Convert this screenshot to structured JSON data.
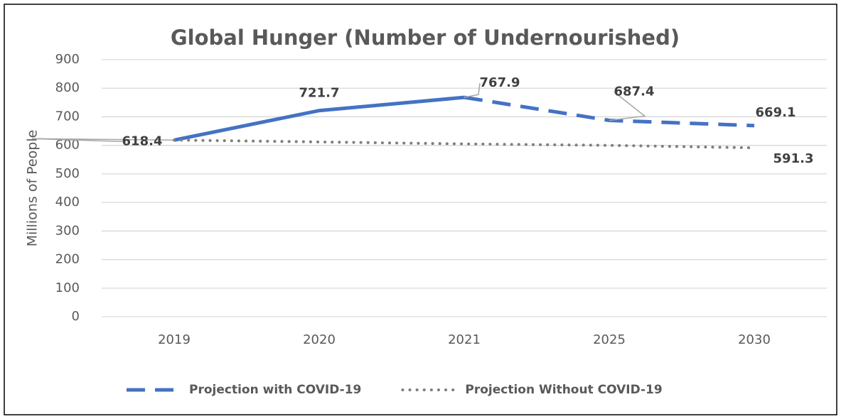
{
  "chart_data": {
    "type": "line",
    "title": "Global Hunger (Number of Undernourished)",
    "y_label": "Millions of People",
    "categories": [
      "2019",
      "2020",
      "2021",
      "2025",
      "2030"
    ],
    "series": [
      {
        "name": "Projection with COVID-19",
        "color": "#4472c4",
        "style": "dashed",
        "segment_styles": [
          "solid",
          "solid",
          "dashed",
          "dashed"
        ],
        "values": [
          618.4,
          721.7,
          767.9,
          687.4,
          669.1
        ],
        "value_labels": [
          "618.4",
          "721.7",
          "767.9",
          "687.4",
          "669.1"
        ]
      },
      {
        "name": "Projection Without COVID-19",
        "color": "#7f7f7f",
        "style": "dotted",
        "segment_styles": [
          "dotted",
          "dotted",
          "dotted",
          "dotted"
        ],
        "values": [
          618.4,
          612,
          605,
          600,
          591.3
        ],
        "value_labels": [
          null,
          null,
          null,
          null,
          "591.3"
        ]
      }
    ],
    "ylim": [
      0,
      900
    ],
    "yticks": [
      0,
      100,
      200,
      300,
      400,
      500,
      600,
      700,
      800,
      900
    ],
    "grid": true,
    "legend": "bottom"
  }
}
